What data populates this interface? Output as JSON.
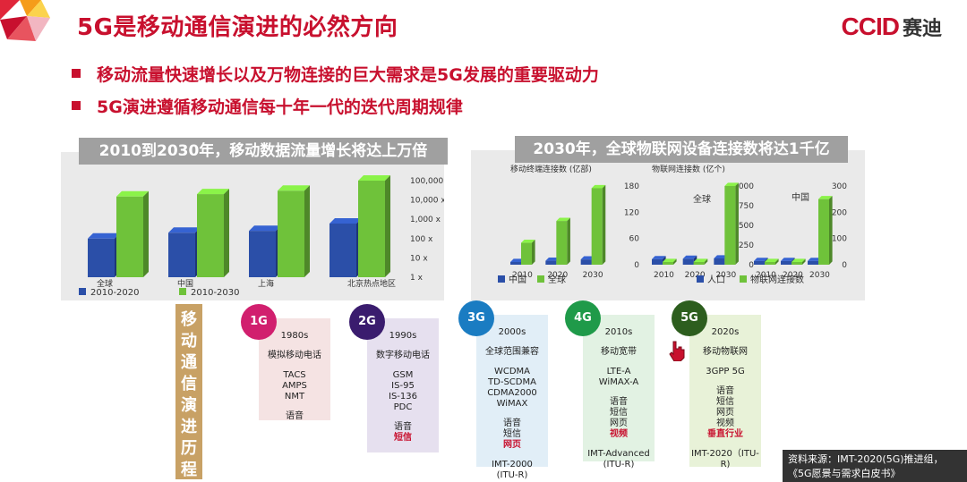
{
  "slide": {
    "title": "5G是移动通信演进的必然方向",
    "logo_text": "CCID",
    "logo_cn": "赛迪"
  },
  "bullets": [
    "移动流量快速增长以及万物连接的巨大需求是5G发展的重要驱动力",
    "5G演进遵循移动通信每十年一代的迭代周期规律"
  ],
  "left_panel": {
    "banner": "2010到2030年，移动数据流量增长将达上万倍"
  },
  "right_panel": {
    "banner": "2030年，全球物联网设备连接数将达1千亿",
    "sub1_title": "移动终端连接数 (亿部)",
    "sub2_title": "物联网连接数 (亿个)",
    "sub2_label_global": "全球",
    "sub3_label_china": "中国"
  },
  "chart_data": [
    {
      "type": "bar",
      "categories": [
        "全球",
        "中国",
        "上海",
        "北京热点地区"
      ],
      "series": [
        {
          "name": "2010-2020",
          "values": [
            100,
            200,
            250,
            600
          ]
        },
        {
          "name": "2010-2030",
          "values": [
            15000,
            20000,
            30000,
            100000
          ]
        }
      ],
      "yticks": [
        "100,000 x",
        "10,000 x",
        "1,000 x",
        "100 x",
        "10 x",
        "1 x"
      ],
      "scale": "log",
      "colors": [
        "#2b4fa8",
        "#6fc23a"
      ]
    },
    {
      "type": "bar",
      "title": "移动终端连接数 (亿部)",
      "categories": [
        "2010",
        "2020",
        "2030"
      ],
      "series": [
        {
          "name": "中国",
          "values": [
            6,
            9,
            12
          ]
        },
        {
          "name": "全球",
          "values": [
            50,
            100,
            175
          ]
        }
      ],
      "yticks": [
        "180",
        "120",
        "60",
        "0"
      ],
      "ylim": [
        0,
        180
      ],
      "colors": [
        "#2b4fa8",
        "#6fc23a"
      ]
    },
    {
      "type": "bar",
      "title": "物联网连接数 (亿个)",
      "categories": [
        "2010",
        "2020",
        "2030"
      ],
      "series": [
        {
          "name": "人口",
          "values": [
            70,
            75,
            80
          ]
        },
        {
          "name": "物联网连接数",
          "values": [
            0,
            0,
            1000
          ]
        }
      ],
      "yticks": [
        "1,000",
        "750",
        "500",
        "250",
        "0"
      ],
      "ylim": [
        0,
        1000
      ],
      "colors": [
        "#2b4fa8",
        "#6fc23a"
      ]
    },
    {
      "type": "bar",
      "categories": [
        "2010",
        "2020",
        "2030"
      ],
      "series": [
        {
          "name": "人口",
          "values": [
            14,
            14,
            14
          ]
        },
        {
          "name": "物联网连接数",
          "values": [
            0,
            0,
            250
          ]
        }
      ],
      "yticks": [
        "300",
        "200",
        "100",
        "0"
      ],
      "ylim": [
        0,
        300
      ],
      "colors": [
        "#2b4fa8",
        "#6fc23a"
      ]
    }
  ],
  "legend_right_a": [
    "中国",
    "全球"
  ],
  "legend_right_b": [
    "人口",
    "物联网连接数"
  ],
  "timeline": {
    "label": "移动通信演进历程",
    "generations": [
      {
        "gen": "1G",
        "decade": "1980s",
        "type": "模拟移动电话",
        "tech": [
          "TACS",
          "AMPS",
          "NMT"
        ],
        "services": [
          "语音"
        ],
        "highlight": [],
        "standard": [],
        "circle": "#d11f6e",
        "bg": "#f5e3e3"
      },
      {
        "gen": "2G",
        "decade": "1990s",
        "type": "数字移动电话",
        "tech": [
          "GSM",
          "IS-95",
          "IS-136",
          "PDC"
        ],
        "services": [
          "语音"
        ],
        "highlight": [
          "短信"
        ],
        "standard": [],
        "circle": "#3a1c6e",
        "bg": "#e6e0ef"
      },
      {
        "gen": "3G",
        "decade": "2000s",
        "type": "全球范围兼容",
        "tech": [
          "WCDMA",
          "TD-SCDMA",
          "CDMA2000",
          "WiMAX"
        ],
        "services": [
          "语音",
          "短信"
        ],
        "highlight": [
          "网页"
        ],
        "standard": [
          "IMT-2000",
          "(ITU-R)"
        ],
        "circle": "#1a7cc2",
        "bg": "#e1eef7"
      },
      {
        "gen": "4G",
        "decade": "2010s",
        "type": "移动宽带",
        "tech": [
          "LTE-A",
          "WiMAX-A"
        ],
        "services": [
          "语音",
          "短信",
          "网页"
        ],
        "highlight": [
          "视频"
        ],
        "standard": [
          "IMT-Advanced",
          "(ITU-R)"
        ],
        "circle": "#1f9a49",
        "bg": "#e2f2e3"
      },
      {
        "gen": "5G",
        "decade": "2020s",
        "type": "移动物联网",
        "tech": [
          "3GPP 5G"
        ],
        "services": [
          "语音",
          "短信",
          "网页",
          "视频"
        ],
        "highlight": [
          "垂直行业"
        ],
        "standard": [
          "IMT-2020（ITU-",
          "R)"
        ],
        "circle": "#2d5e1e",
        "bg": "#e8f2d8"
      }
    ]
  },
  "source": {
    "line1": "资料来源：IMT-2020(5G)推进组，",
    "line2": "《5G愿景与需求白皮书》"
  },
  "colors": {
    "accent": "#c8102e",
    "blue": "#2b4fa8",
    "green": "#6fc23a"
  }
}
